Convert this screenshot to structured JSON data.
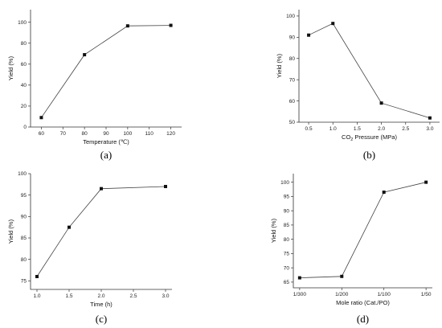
{
  "chart_data": [
    {
      "type": "line",
      "panel_label": "(a)",
      "xlabel": "Temperature (℃)",
      "ylabel": "Yield (%)",
      "x": [
        60,
        80,
        100,
        120
      ],
      "values": [
        9,
        69,
        96.5,
        97
      ],
      "xlim": [
        55,
        125
      ],
      "ylim": [
        0,
        112
      ],
      "xticks": [
        60,
        70,
        80,
        90,
        100,
        110,
        120
      ],
      "yticks": [
        0,
        20,
        40,
        60,
        80,
        100
      ]
    },
    {
      "type": "line",
      "panel_label": "(b)",
      "xlabel_parts": [
        "CO",
        "2",
        " Pressure  (MPa)"
      ],
      "ylabel": "Yield (%)",
      "x": [
        0.5,
        1.0,
        2.0,
        3.0
      ],
      "values": [
        91,
        96.5,
        59,
        52
      ],
      "xlim": [
        0.3,
        3.2
      ],
      "ylim": [
        50,
        103
      ],
      "xticks": [
        0.5,
        1.0,
        1.5,
        2.0,
        2.5,
        3.0
      ],
      "xtick_labels": [
        "0.5",
        "1.0",
        "1.5",
        "2.0",
        "2.5",
        "3.0"
      ],
      "yticks": [
        50,
        60,
        70,
        80,
        90,
        100
      ]
    },
    {
      "type": "line",
      "panel_label": "(c)",
      "xlabel": "Time (h)",
      "ylabel": "Yield (%)",
      "x": [
        1.0,
        1.5,
        2.0,
        3.0
      ],
      "values": [
        76,
        87.5,
        96.5,
        97
      ],
      "xlim": [
        0.9,
        3.1
      ],
      "ylim": [
        73,
        100
      ],
      "xticks": [
        1.0,
        1.5,
        2.0,
        2.5,
        3.0
      ],
      "xtick_labels": [
        "1.0",
        "1.5",
        "2.0",
        "2.5",
        "3.0"
      ],
      "yticks": [
        75,
        80,
        85,
        90,
        95,
        100
      ]
    },
    {
      "type": "line",
      "panel_label": "(d)",
      "xlabel": "Mole ratio (Cat./PO)",
      "ylabel": "Yield (%)",
      "categories": [
        "1/300",
        "1/200",
        "1/100",
        "1/50"
      ],
      "x": [
        0,
        1,
        2,
        3
      ],
      "values": [
        66.5,
        67,
        96.5,
        100
      ],
      "xlim": [
        -0.15,
        3.15
      ],
      "ylim": [
        63,
        103
      ],
      "yticks": [
        65,
        70,
        75,
        80,
        85,
        90,
        95,
        100
      ]
    }
  ],
  "colors": {
    "line": "#444444",
    "marker": "#111111",
    "axis": "#333333"
  }
}
